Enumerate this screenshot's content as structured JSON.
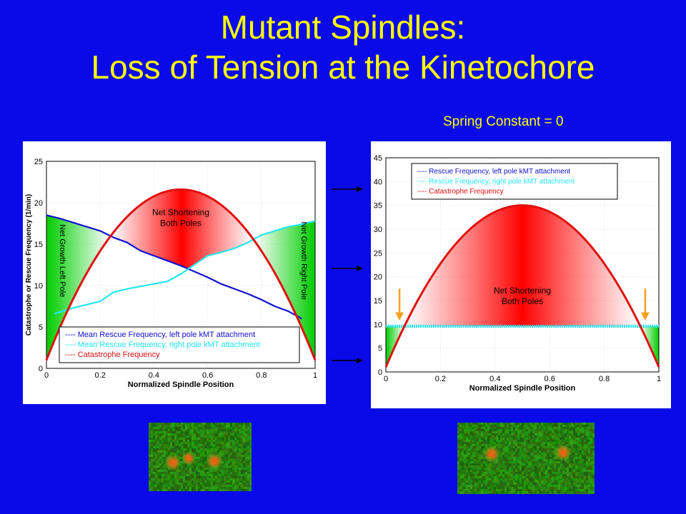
{
  "slide": {
    "title_line1": "Mutant Spindles:",
    "title_line2": "Loss of Tension at the Kinetochore",
    "spring_label": "Spring Constant = 0"
  },
  "colors": {
    "background": "#0a0ae8",
    "title": "#ffff00",
    "left_rescue": "#1010d0",
    "right_rescue": "#22e6f0",
    "catastrophe": "#e01010",
    "net_growth": "#00cc00",
    "arrow_marker": "#f5a020"
  },
  "chart_data": [
    {
      "type": "line",
      "title": "",
      "xlabel": "Normalized Spindle Position",
      "ylabel": "Catastrophe or Rescue Frequency (1/min)",
      "xlim": [
        0,
        1
      ],
      "ylim": [
        0,
        25
      ],
      "xticks": [
        "0",
        "0.2",
        "0.4",
        "0.6",
        "0.8",
        "1"
      ],
      "yticks": [
        "0",
        "5",
        "10",
        "15",
        "20",
        "25"
      ],
      "grid": true,
      "legend_position": "bottom",
      "legend_prefix": "----",
      "series": [
        {
          "name": "Mean Rescue Frequency, left pole kMT attachment",
          "color": "#1010d0",
          "x": [
            0,
            0.05,
            0.1,
            0.15,
            0.2,
            0.25,
            0.3,
            0.35,
            0.4,
            0.45,
            0.5,
            0.55,
            0.6,
            0.65,
            0.7,
            0.75,
            0.8,
            0.85,
            0.9,
            0.95
          ],
          "y": [
            18.5,
            18.1,
            17.6,
            17.1,
            16.6,
            15.8,
            15.2,
            14.2,
            13.6,
            13.0,
            12.4,
            11.7,
            11.0,
            10.2,
            9.6,
            9.0,
            8.3,
            7.5,
            6.9,
            6.0
          ]
        },
        {
          "name": "Mean Rescue Frequency, right pole kMT attachment",
          "color": "#22e6f0",
          "x": [
            0.03,
            0.1,
            0.15,
            0.2,
            0.25,
            0.3,
            0.35,
            0.4,
            0.45,
            0.5,
            0.55,
            0.6,
            0.65,
            0.7,
            0.75,
            0.8,
            0.85,
            0.9,
            0.95,
            1
          ],
          "y": [
            6.6,
            7.3,
            7.7,
            8.1,
            9.2,
            9.6,
            9.9,
            10.2,
            10.5,
            11.4,
            12.5,
            13.6,
            14.0,
            14.5,
            15.2,
            16.1,
            16.6,
            17.1,
            17.4,
            17.8
          ]
        },
        {
          "name": "Catastrophe Frequency",
          "color": "#e01010",
          "function": "quadratic",
          "peak_x": 0.5,
          "peak_y": 21.6,
          "endpoint_y": 1.0
        }
      ],
      "annotations": [
        {
          "text_line1": "Net Shortening",
          "text_line2": "Both Poles",
          "x": 0.5,
          "y": 18.5
        },
        {
          "text": "Net Growth Left Pole",
          "x": 0.05,
          "y": 13,
          "rotation": 90
        },
        {
          "text": "Net Growth Right Pole",
          "x": 0.95,
          "y": 13,
          "rotation": 90
        }
      ]
    },
    {
      "type": "line",
      "title": "",
      "xlabel": "Normalized Spindle Position",
      "ylabel": "",
      "xlim": [
        0,
        1
      ],
      "ylim": [
        0,
        45
      ],
      "xticks": [
        "0",
        "0.2",
        "0.4",
        "0.6",
        "0.8",
        "1"
      ],
      "yticks": [
        "0",
        "5",
        "10",
        "15",
        "20",
        "25",
        "30",
        "35",
        "40",
        "45"
      ],
      "grid": true,
      "legend_position": "top",
      "legend_prefix": "----",
      "series": [
        {
          "name": "Rescue Frequency, left pole kMT attachment",
          "color": "#1010d0",
          "x": [
            0,
            1
          ],
          "y": [
            9.6,
            9.6
          ]
        },
        {
          "name": "Rescue Frequency, right pole kMT attachment",
          "color": "#22e6f0",
          "x": [
            0,
            1
          ],
          "y": [
            9.6,
            9.6
          ]
        },
        {
          "name": "Catastrophe Frequency",
          "color": "#e01010",
          "function": "quadratic",
          "peak_x": 0.5,
          "peak_y": 35,
          "endpoint_y": 1.0
        }
      ],
      "annotations": [
        {
          "text_line1": "Net Shortening",
          "text_line2": "Both Poles",
          "x": 0.5,
          "y": 16.5
        }
      ]
    }
  ]
}
